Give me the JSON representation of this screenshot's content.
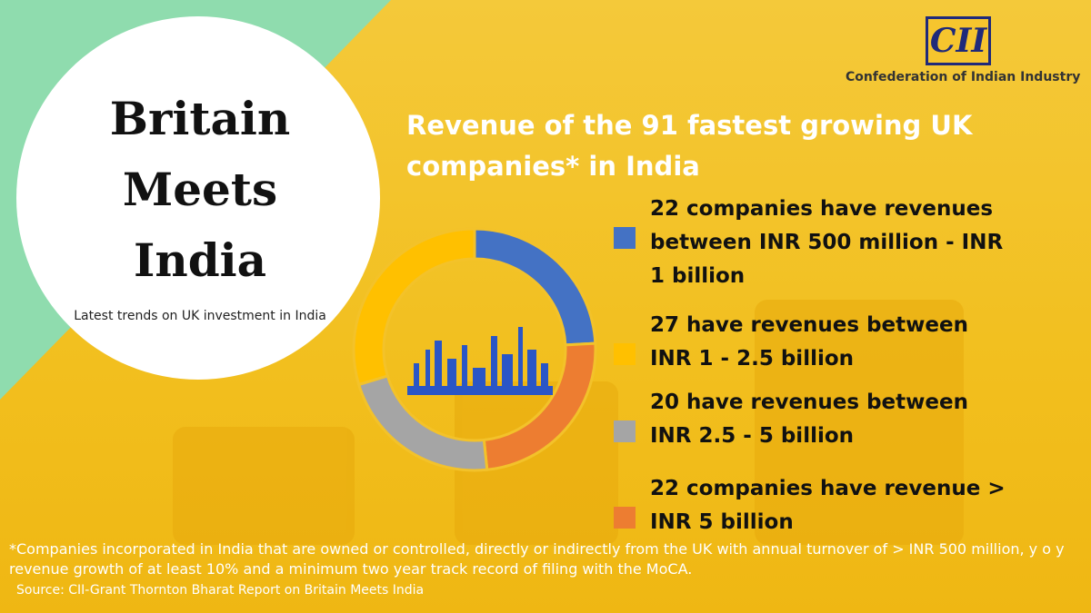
{
  "banner": {
    "title_lines": [
      "Britain",
      "Meets",
      "India"
    ],
    "subtitle": "Latest trends on UK investment in India"
  },
  "logo": {
    "mark": "CII",
    "name": "Confederation of Indian Industry"
  },
  "chart_data": {
    "type": "donut",
    "title": "Revenue of the 91 fastest growing UK companies* in India",
    "categories": [
      "22 companies have revenues between INR 500 million - INR 1 billion",
      "22 companies have revenue > INR 5 billion",
      "20 have revenues between INR 2.5 - 5 billion",
      "27 have revenues between INR 1 - 2.5 billion"
    ],
    "values": [
      22,
      22,
      20,
      27
    ],
    "colors": [
      "#4472c4",
      "#ed7d31",
      "#a5a5a5",
      "#ffc000"
    ]
  },
  "footnote": "*Companies incorporated in India that are owned or controlled, directly or indirectly from the UK with annual turnover of > INR 500 million, y o y revenue growth of at least 10% and a minimum two year track record of filing with the MoCA.",
  "source": "Source: CII-Grant Thornton Bharat Report on Britain Meets India"
}
